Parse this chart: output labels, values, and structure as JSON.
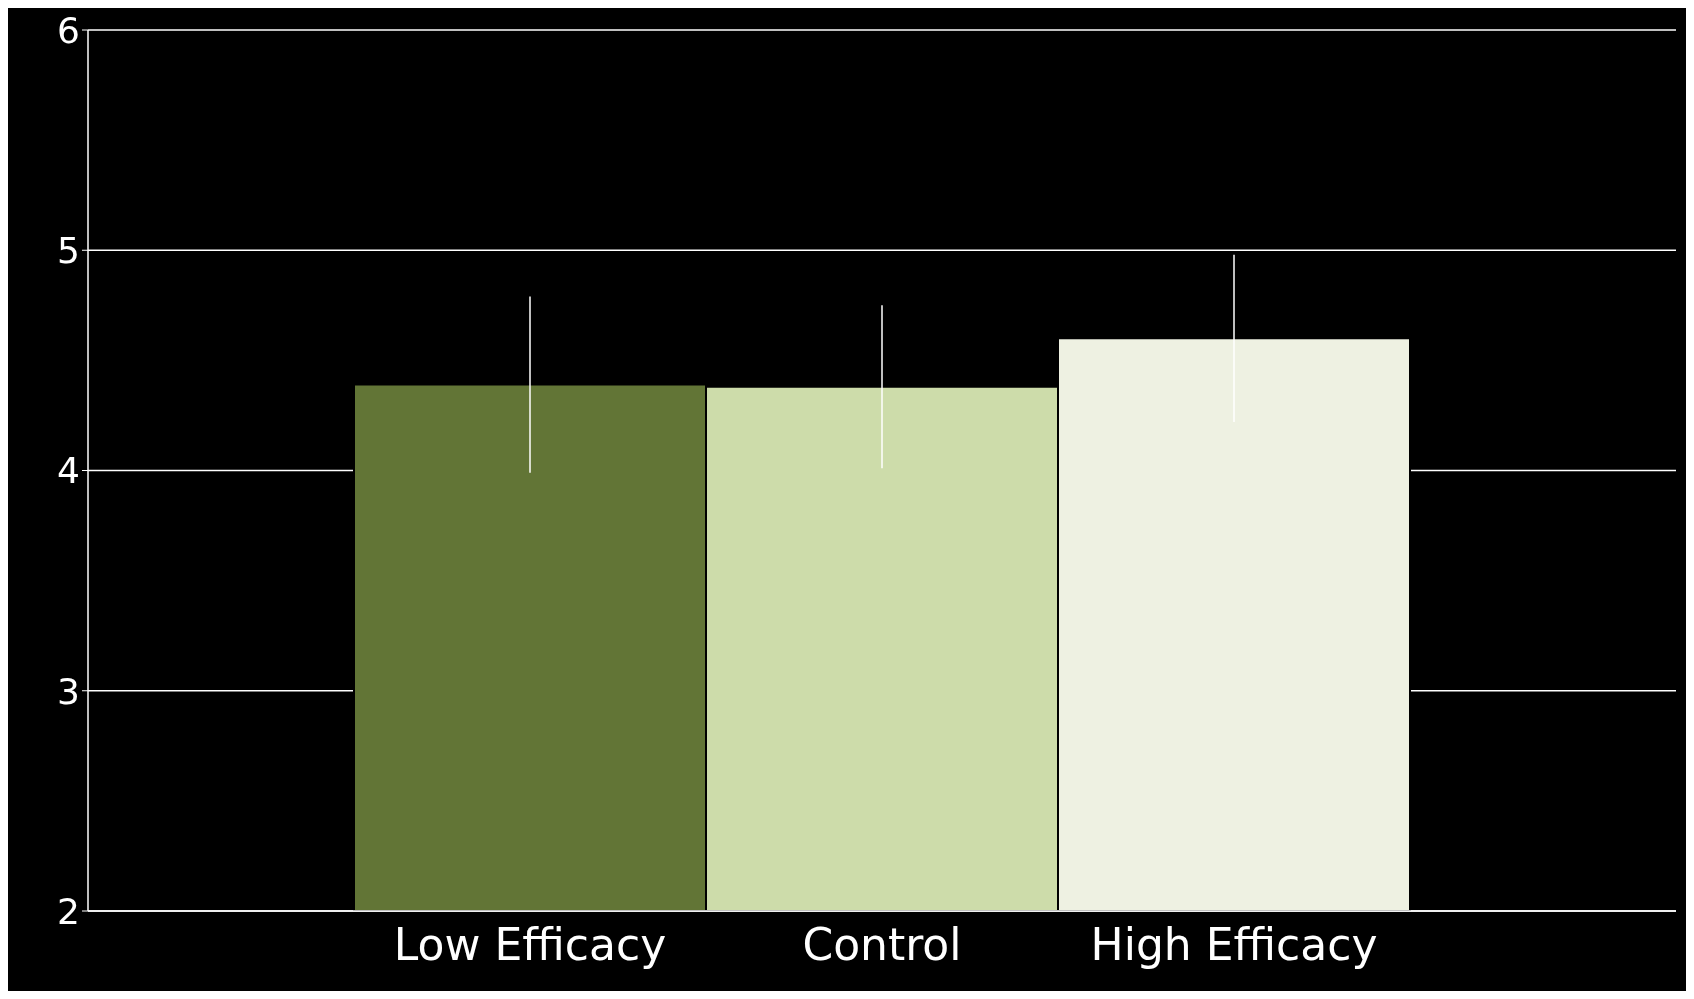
{
  "chart_data": {
    "type": "bar",
    "categories": [
      "Low Efficacy",
      "Control",
      "High Efficacy"
    ],
    "values": [
      4.39,
      4.38,
      4.6
    ],
    "errors": [
      0.4,
      0.37,
      0.38
    ],
    "colors": [
      "#627536",
      "#cddcaa",
      "#eef1e2"
    ],
    "ylim": [
      2,
      6
    ],
    "yticks": [
      2,
      3,
      4,
      5,
      6
    ],
    "grid": "y"
  }
}
